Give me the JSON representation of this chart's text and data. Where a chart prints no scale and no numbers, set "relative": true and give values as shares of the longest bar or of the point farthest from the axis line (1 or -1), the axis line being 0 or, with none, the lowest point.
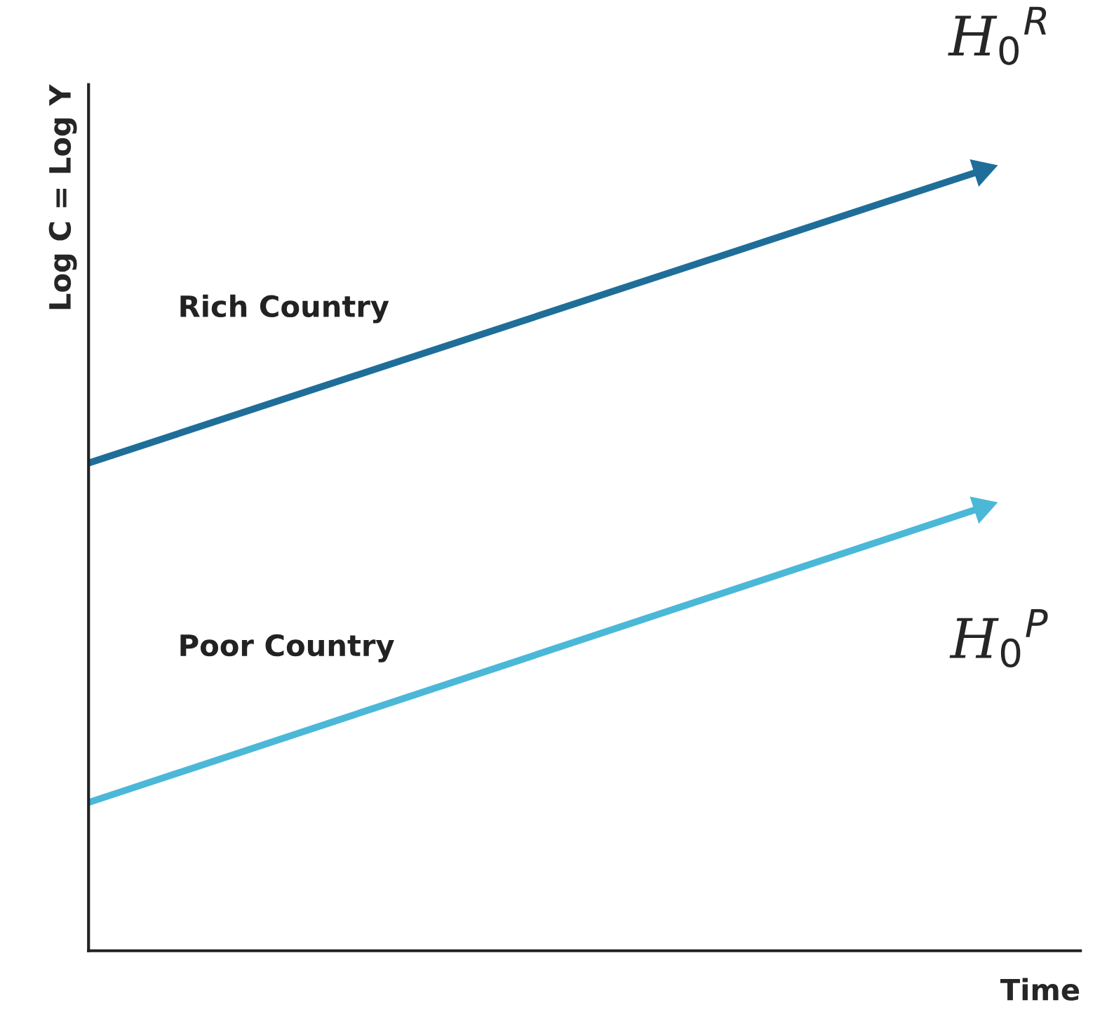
{
  "chart_data": {
    "type": "line",
    "relative": true,
    "ylabel": "Log C = Log Y",
    "xlabel": "Time",
    "categories": [
      null,
      null
    ],
    "series": [
      {
        "name": "Rich Country",
        "color": "#1f6e99",
        "values": [
          0.625,
          1
        ]
      },
      {
        "name": "Poor Country",
        "color": "#4bb8d8",
        "values": [
          0.19,
          0.568
        ]
      }
    ],
    "annotations": [
      "H$_{0}$$^{R}$",
      "H$_{0}$$^{P}$"
    ],
    "legend": false
  }
}
